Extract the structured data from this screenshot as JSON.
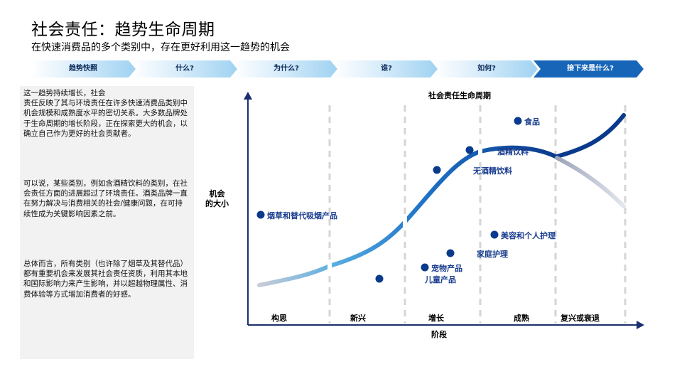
{
  "header": {
    "title": "社会责任：趋势生命周期",
    "subtitle": "在快速消费品的多个类别中，存在更好利用这一趋势的机会"
  },
  "nav": {
    "items": [
      {
        "label": "趋势快照"
      },
      {
        "label": "什么?"
      },
      {
        "label": "为什么?"
      },
      {
        "label": "谁?"
      },
      {
        "label": "如何?"
      },
      {
        "label": "接下来是什么?",
        "active": true
      }
    ]
  },
  "sidebar": {
    "paragraphs": [
      "这一趋势持续增长，社会\n责任反映了其与环境责任在许多快速消费品类别中机会规模和成熟度水平的密切关系。大多数品牌处于生命周期的增长阶段，正在探索更大的机会，以确立自己作为更好的社会贡献者。",
      "可以说，某些类别，例如含酒精饮料的类别，在社会责任方面的进展超过了环境责任。酒类品牌一直在努力解决与消费相关的社会/健康问题，在可持续性成为关键影响因素之前。",
      "总体而言，所有类别（也许除了烟草及其替代品）都有重要机会来发展其社会责任资质，利用其本地和国际影响力来产生影响，并以超越物理属性、消费体验等方式增加消费者的好感。"
    ]
  },
  "chart": {
    "title": "社会责任生命周期",
    "ylabel": "机会\n的大小",
    "xlabel": "阶段",
    "stages": [
      "构思",
      "新兴",
      "增长",
      "成熟",
      "复兴或衰退"
    ],
    "categories": [
      {
        "label": "烟草和替代吸烟产品"
      },
      {
        "label": "食品"
      },
      {
        "label": "酒精饮料"
      },
      {
        "label": "无酒精饮料"
      },
      {
        "label": "美容和个人护理"
      },
      {
        "label": "家庭护理"
      },
      {
        "label": "宠物产品"
      },
      {
        "label": "儿童产品"
      }
    ],
    "colors": {
      "dark_blue": "#0a3a8c",
      "mid_blue": "#1f74c9",
      "light_blue": "#5aaee0",
      "grey": "#c9cdd8",
      "axis": "#1a2f6e"
    }
  }
}
